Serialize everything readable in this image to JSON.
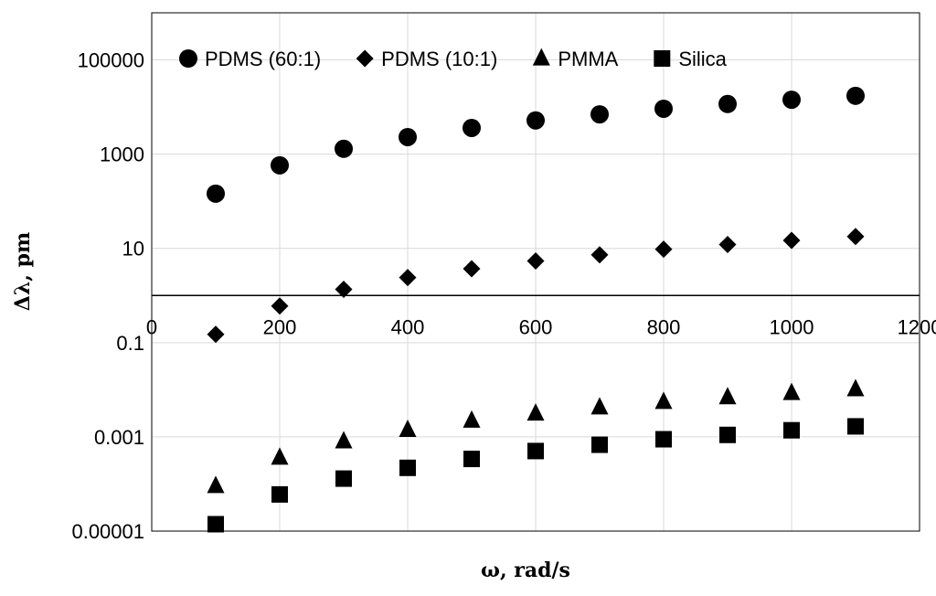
{
  "chart_data": {
    "type": "scatter",
    "xlabel": "ω, rad/s",
    "ylabel": "Δλ, pm",
    "xlim": [
      0,
      1200
    ],
    "x_ticks": [
      0,
      200,
      400,
      600,
      800,
      1000,
      1200
    ],
    "ylim": [
      1e-05,
      1000000
    ],
    "y_scale": "log",
    "y_ticks": [
      {
        "value": 1e-05,
        "label": "0.00001"
      },
      {
        "value": 0.001,
        "label": "0.001"
      },
      {
        "value": 0.1,
        "label": "0.1"
      },
      {
        "value": 10,
        "label": "10"
      },
      {
        "value": 1000,
        "label": "1000"
      },
      {
        "value": 100000,
        "label": "100000"
      }
    ],
    "x_axis_crosses_at_y": 1,
    "grid": true,
    "legend_position": "top",
    "series": [
      {
        "name": "PDMS (60:1)",
        "marker": "circle",
        "color": "#000000",
        "x": [
          100,
          200,
          300,
          400,
          500,
          600,
          700,
          800,
          900,
          1000,
          1100
        ],
        "y": [
          145,
          580,
          1300,
          2300,
          3600,
          5200,
          7000,
          9200,
          11600,
          14300,
          17300
        ]
      },
      {
        "name": "PDMS (10:1)",
        "marker": "diamond",
        "color": "#000000",
        "x": [
          100,
          200,
          300,
          400,
          500,
          600,
          700,
          800,
          900,
          1000,
          1100
        ],
        "y": [
          0.15,
          0.6,
          1.35,
          2.4,
          3.7,
          5.4,
          7.3,
          9.6,
          12.1,
          14.8,
          17.9
        ]
      },
      {
        "name": "PMMA",
        "marker": "triangle",
        "color": "#000000",
        "x": [
          100,
          200,
          300,
          400,
          500,
          600,
          700,
          800,
          900,
          1000,
          1100
        ],
        "y": [
          9e-05,
          0.00036,
          0.0008,
          0.0014,
          0.0022,
          0.0031,
          0.0042,
          0.0055,
          0.0069,
          0.0085,
          0.0102
        ]
      },
      {
        "name": "Silica",
        "marker": "square",
        "color": "#000000",
        "x": [
          100,
          200,
          300,
          400,
          500,
          600,
          700,
          800,
          900,
          1000,
          1100
        ],
        "y": [
          1.4e-05,
          6e-05,
          0.00013,
          0.00022,
          0.00034,
          0.0005,
          0.00068,
          0.00089,
          0.0011,
          0.00138,
          0.00167
        ]
      }
    ]
  }
}
